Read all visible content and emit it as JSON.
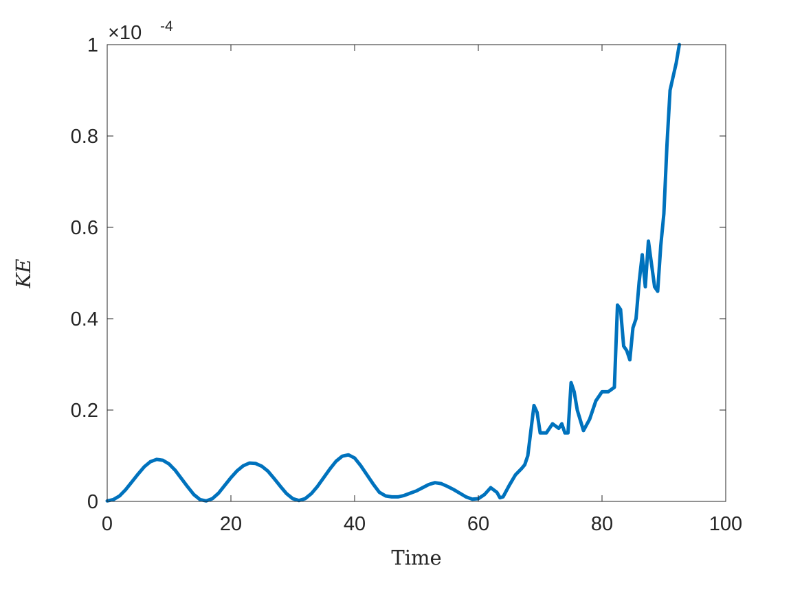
{
  "chart_data": {
    "type": "line",
    "xlabel": "Time",
    "ylabel": "KE",
    "y_multiplier_label": {
      "base": "×10",
      "exponent": "-4"
    },
    "xlim": [
      0,
      100
    ],
    "ylim": [
      0,
      1
    ],
    "x_ticks": [
      0,
      20,
      40,
      60,
      80,
      100
    ],
    "x_tick_labels": [
      "0",
      "20",
      "40",
      "60",
      "80",
      "100"
    ],
    "y_ticks": [
      0,
      0.2,
      0.4,
      0.6,
      0.8,
      1
    ],
    "y_tick_labels": [
      "0",
      "0.2",
      "0.4",
      "0.6",
      "0.8",
      "1"
    ],
    "grid": false,
    "box": true,
    "colors": {
      "series": "#0072BD",
      "axes": "#262626"
    },
    "series": [
      {
        "x": [
          0,
          1,
          2,
          3,
          4,
          5,
          6,
          7,
          8,
          9,
          10,
          11,
          12,
          13,
          14,
          15,
          16,
          17,
          18,
          19,
          20,
          21,
          22,
          23,
          24,
          25,
          26,
          27,
          28,
          29,
          30,
          31,
          32,
          33,
          34,
          35,
          36,
          37,
          38,
          39,
          40,
          41,
          42,
          43,
          44,
          45,
          46,
          47,
          48,
          49,
          50,
          51,
          52,
          53,
          54,
          55,
          56,
          57,
          58,
          59,
          60,
          61,
          62,
          63,
          63.5,
          64,
          65,
          66,
          67,
          67.5,
          68,
          69,
          69.5,
          70,
          71,
          72,
          73,
          73.5,
          74,
          74.5,
          75,
          75.5,
          76,
          77,
          78,
          79,
          80,
          81,
          82,
          82.5,
          83,
          83.5,
          84,
          84.5,
          85,
          85.5,
          86,
          86.5,
          87,
          87.5,
          88,
          88.5,
          89,
          89.5,
          90,
          90.5,
          91,
          91.5,
          92,
          92.5
        ],
        "y": [
          0.001,
          0.004,
          0.012,
          0.026,
          0.043,
          0.06,
          0.076,
          0.087,
          0.092,
          0.09,
          0.082,
          0.068,
          0.05,
          0.032,
          0.015,
          0.004,
          0.001,
          0.006,
          0.018,
          0.035,
          0.052,
          0.067,
          0.078,
          0.084,
          0.083,
          0.077,
          0.066,
          0.05,
          0.033,
          0.017,
          0.006,
          0.002,
          0.006,
          0.017,
          0.033,
          0.052,
          0.071,
          0.088,
          0.099,
          0.102,
          0.095,
          0.078,
          0.058,
          0.038,
          0.02,
          0.012,
          0.01,
          0.01,
          0.013,
          0.018,
          0.023,
          0.03,
          0.037,
          0.041,
          0.039,
          0.033,
          0.026,
          0.018,
          0.01,
          0.005,
          0.006,
          0.015,
          0.03,
          0.02,
          0.008,
          0.01,
          0.035,
          0.058,
          0.072,
          0.08,
          0.1,
          0.21,
          0.195,
          0.15,
          0.15,
          0.17,
          0.16,
          0.17,
          0.15,
          0.15,
          0.26,
          0.24,
          0.2,
          0.155,
          0.18,
          0.22,
          0.24,
          0.24,
          0.25,
          0.43,
          0.42,
          0.34,
          0.33,
          0.31,
          0.38,
          0.4,
          0.48,
          0.54,
          0.47,
          0.57,
          0.52,
          0.47,
          0.46,
          0.56,
          0.63,
          0.78,
          0.9,
          0.93,
          0.96,
          1.0
        ]
      }
    ]
  }
}
